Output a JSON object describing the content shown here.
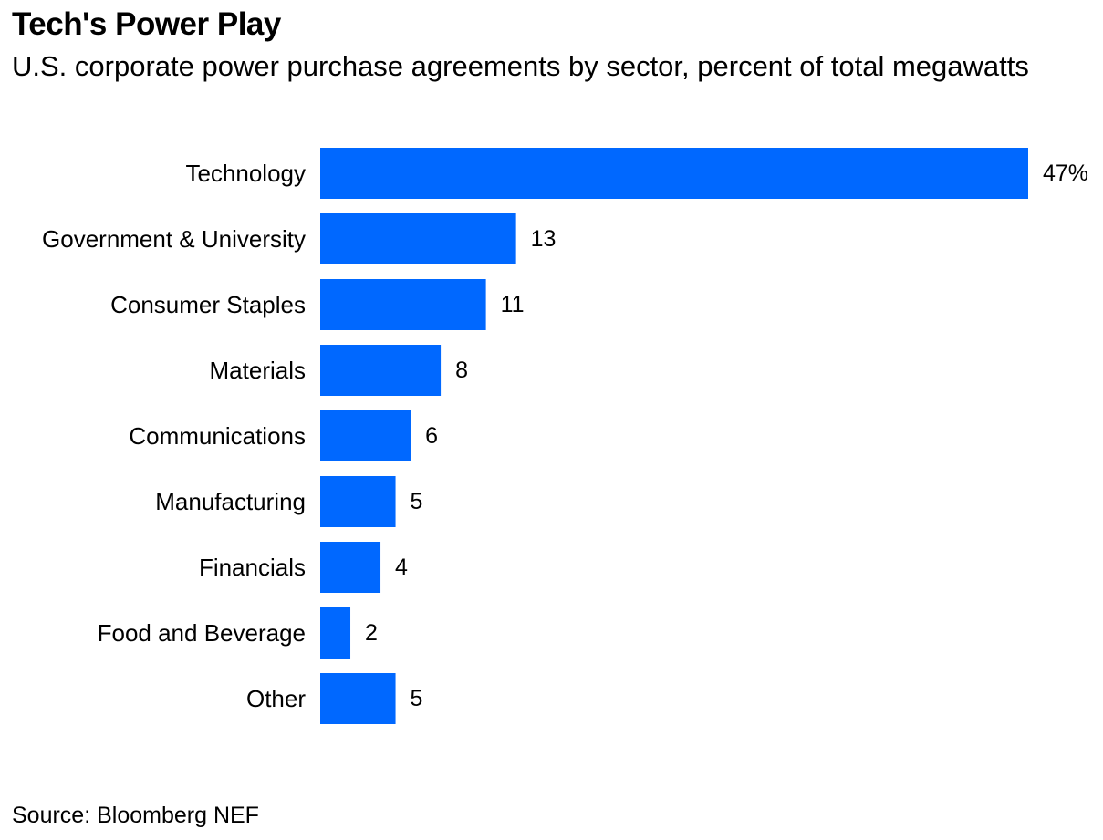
{
  "title": "Tech's Power Play",
  "subtitle": "U.S. corporate power purchase agreements by sector, percent of total megawatts",
  "source": "Source: Bloomberg NEF",
  "colors": {
    "bar": "#0068FF",
    "text": "#000000",
    "background": "#FFFFFF"
  },
  "chart_data": {
    "type": "bar",
    "orientation": "horizontal",
    "categories": [
      "Technology",
      "Government & University",
      "Consumer Staples",
      "Materials",
      "Communications",
      "Manufacturing",
      "Financials",
      "Food and Beverage",
      "Other"
    ],
    "values": [
      47,
      13,
      11,
      8,
      6,
      5,
      4,
      2,
      5
    ],
    "value_labels": [
      "47%",
      "13",
      "11",
      "8",
      "6",
      "5",
      "4",
      "2",
      "5"
    ],
    "xlim": [
      0,
      47
    ],
    "grid": false,
    "legend": "none"
  }
}
